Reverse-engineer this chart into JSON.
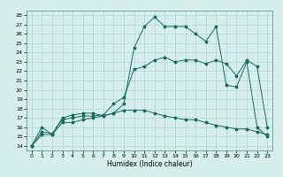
{
  "xlabel": "Humidex (Indice chaleur)",
  "bg_color": "#d6efed",
  "line_color": "#1a6b5a",
  "grid_color": "#b0d8d5",
  "xlim": [
    -0.5,
    23.5
  ],
  "ylim": [
    13.5,
    28.5
  ],
  "yticks": [
    14,
    15,
    16,
    17,
    18,
    19,
    20,
    21,
    22,
    23,
    24,
    25,
    26,
    27,
    28
  ],
  "xticks": [
    0,
    1,
    2,
    3,
    4,
    5,
    6,
    7,
    8,
    9,
    10,
    11,
    12,
    13,
    14,
    15,
    16,
    17,
    18,
    19,
    20,
    21,
    22,
    23
  ],
  "line1_y": [
    14.0,
    16.0,
    15.2,
    17.0,
    17.3,
    17.5,
    17.5,
    17.2,
    17.5,
    18.5,
    24.5,
    26.8,
    27.8,
    26.8,
    26.8,
    26.8,
    26.0,
    25.2,
    26.8,
    20.5,
    20.3,
    23.0,
    16.0,
    15.0
  ],
  "line2_y": [
    14.0,
    15.5,
    15.3,
    16.8,
    17.0,
    17.2,
    17.2,
    17.3,
    18.5,
    19.2,
    22.2,
    22.5,
    23.2,
    23.5,
    23.0,
    23.2,
    23.2,
    22.8,
    23.2,
    22.8,
    21.5,
    23.2,
    22.5,
    16.0
  ],
  "line3_y": [
    14.0,
    15.2,
    15.2,
    16.5,
    16.5,
    16.8,
    17.0,
    17.2,
    17.5,
    17.8,
    17.8,
    17.8,
    17.5,
    17.2,
    17.0,
    16.8,
    16.8,
    16.5,
    16.2,
    16.0,
    15.8,
    15.8,
    15.5,
    15.2
  ]
}
